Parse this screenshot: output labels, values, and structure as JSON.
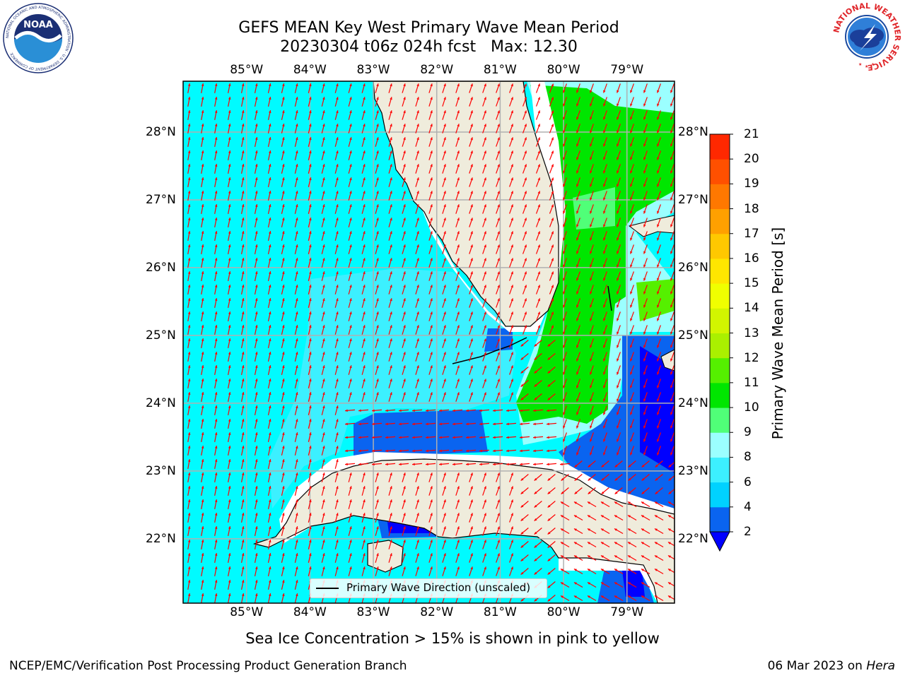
{
  "title": {
    "line1": "GEFS MEAN Key West Primary Wave Mean Period",
    "line2": "20230304 t06z 024h fcst   Max: 12.30"
  },
  "logos": {
    "left": {
      "icon": "noaa-logo-icon",
      "text": "NOAA",
      "ring_text": "NATIONAL OCEANIC AND ATMOSPHERIC ADMINISTRATION · U.S. DEPARTMENT OF COMMERCE"
    },
    "right": {
      "icon": "nws-logo-icon",
      "ring_text": "NATIONAL WEATHER SERVICE"
    }
  },
  "map": {
    "lon_labels": [
      "85°W",
      "84°W",
      "83°W",
      "82°W",
      "81°W",
      "80°W",
      "79°W"
    ],
    "lat_labels": [
      "28°N",
      "27°N",
      "26°N",
      "25°N",
      "24°N",
      "23°N",
      "22°N"
    ],
    "lon_range": [
      -86.0,
      -78.25
    ],
    "lat_range": [
      21.05,
      28.75
    ],
    "legend_label": "Primary Wave Direction (unscaled)",
    "colors": {
      "land": "#efecdc",
      "grid": "#b0b0b0",
      "arrow": "#ff0000",
      "coast": "#000000"
    }
  },
  "colorbar": {
    "label": "Primary Wave Mean Period [s]",
    "ticks": [
      "2",
      "4",
      "6",
      "8",
      "9",
      "10",
      "11",
      "12",
      "13",
      "14",
      "15",
      "16",
      "17",
      "18",
      "19",
      "20",
      "21"
    ],
    "colors": [
      "#0a64f0",
      "#00d2ff",
      "#3cf0ff",
      "#9bffff",
      "#50ff78",
      "#00e600",
      "#55f000",
      "#aaf000",
      "#d2f500",
      "#f0ff00",
      "#ffe600",
      "#ffc800",
      "#ffa000",
      "#ff7800",
      "#ff5000",
      "#ff2800"
    ],
    "under_color": "#0000ff"
  },
  "note": "Sea Ice Concentration > 15% is shown in pink to yellow",
  "footer": {
    "left": "NCEP/EMC/Verification Post Processing Product Generation Branch",
    "right_prefix": "06 Mar 2023 on ",
    "right_host": "Hera"
  }
}
